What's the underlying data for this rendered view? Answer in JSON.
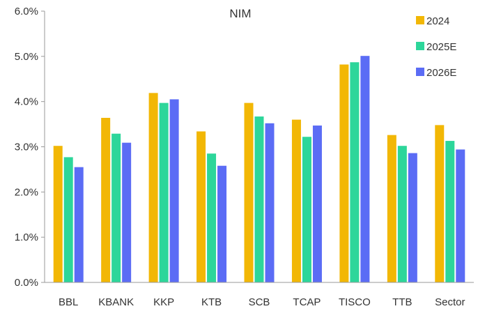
{
  "chart_data": {
    "type": "bar",
    "title": "NIM",
    "xlabel": "",
    "ylabel": "",
    "ylim": [
      0,
      6
    ],
    "yticks": [
      "0.0%",
      "1.0%",
      "2.0%",
      "3.0%",
      "4.0%",
      "5.0%",
      "6.0%"
    ],
    "categories": [
      "BBL",
      "KBANK",
      "KKP",
      "KTB",
      "SCB",
      "TCAP",
      "TISCO",
      "TTB",
      "Sector"
    ],
    "series": [
      {
        "name": "2024",
        "color": "#F2B705",
        "values": [
          3.02,
          3.64,
          4.19,
          3.34,
          3.97,
          3.6,
          4.82,
          3.26,
          3.48
        ]
      },
      {
        "name": "2025E",
        "color": "#2DD69A",
        "values": [
          2.77,
          3.29,
          3.97,
          2.85,
          3.67,
          3.22,
          4.87,
          3.02,
          3.13
        ]
      },
      {
        "name": "2026E",
        "color": "#5B6CF5",
        "values": [
          2.55,
          3.09,
          4.05,
          2.58,
          3.52,
          3.47,
          5.01,
          2.86,
          2.94
        ]
      }
    ],
    "legend_position": "top-right",
    "grid": false
  }
}
